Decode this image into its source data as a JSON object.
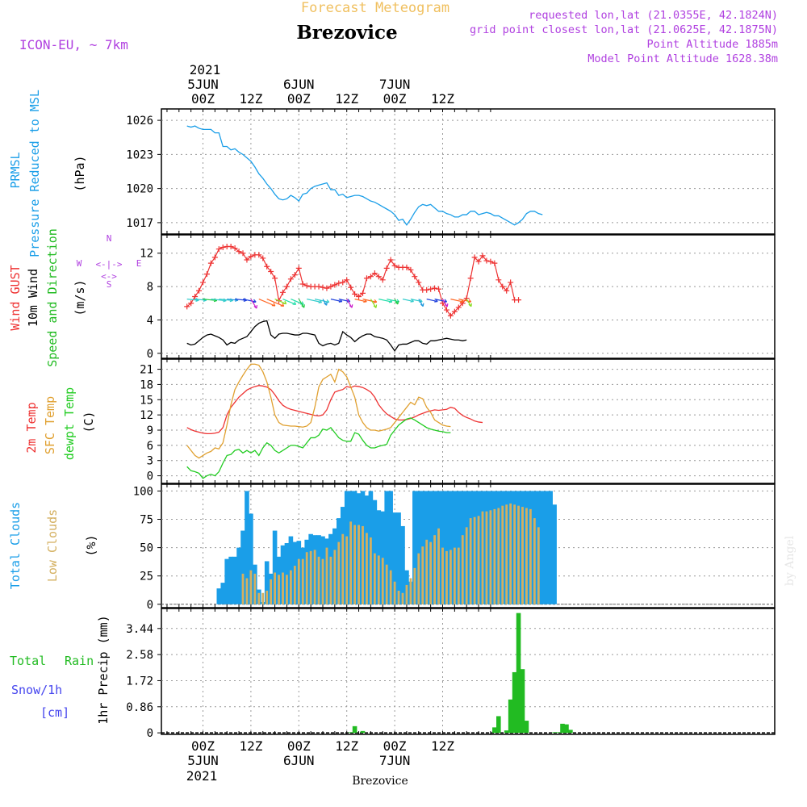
{
  "header": {
    "forecast_title": "Forecast Meteogram",
    "location": "Brezovice",
    "model": "ICON-EU, ~ 7km",
    "requested": "requested lon,lat (21.0355E, 42.1824N)",
    "grid_point": "grid point closest lon,lat (21.0625E, 42.1875N)",
    "point_altitude": "Point Altitude 1885m",
    "model_altitude": "Model Point Altitude 1628.38m"
  },
  "footer": {
    "location": "Brezovice",
    "watermark": "by Angel"
  },
  "colors": {
    "pressure": "#1a9ee8",
    "gust": "#ee3333",
    "wind": "#000000",
    "direction": "#22bb22",
    "t2m": "#ee3333",
    "sfc": "#e0a030",
    "dewpt": "#22cc22",
    "total_clouds": "#1a9ee8",
    "low_clouds": "#d4b060",
    "rain": "#22bb22",
    "snow": "#4444ee",
    "header_purple": "#b040e0",
    "title_orange": "#f0c060"
  },
  "chart_data": [
    {
      "type": "line",
      "panel": "pressure",
      "ylabel": [
        "PRMSL",
        "Pressure Reduced to MSL",
        "(hPa)"
      ],
      "ylim": [
        1016,
        1027
      ],
      "yticks": [
        "1017",
        "1020",
        "1023",
        "1026"
      ],
      "x_start_hour": -4,
      "series": [
        {
          "name": "PRMSL",
          "color": "#1a9ee8",
          "values": [
            1025.5,
            1025.4,
            1025.5,
            1025.3,
            1025.2,
            1025.2,
            1025.2,
            1024.9,
            1024.9,
            1023.7,
            1023.7,
            1023.4,
            1023.5,
            1023.2,
            1023.0,
            1022.7,
            1022.4,
            1021.9,
            1021.3,
            1020.9,
            1020.4,
            1020.0,
            1019.5,
            1019.1,
            1019.0,
            1019.1,
            1019.4,
            1019.2,
            1018.9,
            1019.5,
            1019.6,
            1020.0,
            1020.2,
            1020.3,
            1020.4,
            1020.5,
            1019.9,
            1019.9,
            1019.4,
            1019.5,
            1019.2,
            1019.3,
            1019.4,
            1019.4,
            1019.3,
            1019.1,
            1018.9,
            1018.8,
            1018.6,
            1018.4,
            1018.2,
            1018.0,
            1017.7,
            1017.2,
            1017.3,
            1016.8,
            1017.3,
            1017.9,
            1018.4,
            1018.6,
            1018.5,
            1018.6,
            1018.3,
            1018.0,
            1018.0,
            1017.8,
            1017.7,
            1017.5,
            1017.5,
            1017.7,
            1017.7,
            1018.0,
            1018.0,
            1017.7,
            1017.8,
            1017.9,
            1017.8,
            1017.6,
            1017.6,
            1017.4,
            1017.2,
            1017.0,
            1016.8,
            1017.0,
            1017.3,
            1017.8,
            1018.0,
            1018.0,
            1017.8,
            1017.7
          ]
        }
      ]
    },
    {
      "type": "line",
      "panel": "wind",
      "ylabel": [
        "Wind GUST",
        "10m Wind",
        "Speed and Direction",
        "(m/s)"
      ],
      "ylim": [
        -0.6,
        14.2
      ],
      "yticks": [
        "0",
        "4",
        "8",
        "12"
      ],
      "x_start_hour": -4,
      "compass": {
        "n": "N",
        "s": "S",
        "e": "E",
        "w": "W"
      },
      "series": [
        {
          "name": "Wind GUST",
          "color": "#ee3333",
          "values": [
            5.6,
            6.0,
            6.8,
            7.5,
            8.5,
            9.5,
            10.8,
            11.5,
            12.5,
            12.7,
            12.8,
            12.8,
            12.6,
            12.2,
            12.0,
            11.2,
            11.6,
            11.8,
            11.8,
            11.4,
            10.4,
            9.8,
            9.0,
            6.3,
            7.3,
            8.0,
            8.9,
            9.4,
            10.2,
            8.3,
            8.1,
            8.0,
            8.0,
            8.0,
            7.9,
            7.8,
            8.0,
            8.2,
            8.4,
            8.5,
            8.8,
            7.9,
            7.1,
            6.8,
            7.2,
            9.0,
            9.2,
            9.6,
            9.2,
            8.8,
            10.2,
            11.2,
            10.5,
            10.3,
            10.3,
            10.3,
            10.0,
            9.2,
            8.5,
            7.6,
            7.6,
            7.7,
            7.8,
            7.7,
            6.0,
            5.2,
            4.5,
            5.0,
            5.5,
            6.0,
            6.6,
            9.0,
            11.5,
            11.0,
            11.7,
            11.1,
            11.0,
            10.8,
            8.8,
            8.0,
            7.5,
            8.5,
            6.4,
            6.4
          ]
        },
        {
          "name": "10m Wind",
          "color": "#000000",
          "values": [
            1.2,
            1.0,
            1.1,
            1.5,
            1.9,
            2.2,
            2.3,
            2.1,
            1.9,
            1.6,
            1.0,
            1.3,
            1.2,
            1.6,
            1.8,
            2.0,
            2.6,
            3.2,
            3.6,
            3.8,
            3.9,
            2.2,
            1.8,
            2.3,
            2.4,
            2.4,
            2.3,
            2.2,
            2.2,
            2.4,
            2.4,
            2.3,
            2.2,
            1.2,
            0.9,
            1.1,
            1.2,
            1.0,
            1.2,
            2.6,
            2.2,
            1.9,
            1.4,
            1.8,
            2.1,
            2.3,
            2.3,
            2.0,
            1.9,
            1.8,
            1.6,
            1.0,
            0.3,
            1.0,
            1.1,
            1.1,
            1.3,
            1.5,
            1.5,
            1.2,
            1.1,
            1.5,
            1.5,
            1.6,
            1.7,
            1.8,
            1.7,
            1.6,
            1.6,
            1.5,
            1.6
          ]
        }
      ],
      "arrows_note": "wind direction arrows coloured by speed"
    },
    {
      "type": "line",
      "panel": "temperature",
      "ylabel": [
        "2m Temp",
        "SFC Temp",
        "dewpt Temp",
        "(C)"
      ],
      "ylim": [
        -1.5,
        23
      ],
      "yticks": [
        "0",
        "3",
        "6",
        "9",
        "12",
        "15",
        "18",
        "21"
      ],
      "x_start_hour": -4,
      "series": [
        {
          "name": "2m Temp",
          "color": "#ee3333",
          "values": [
            9.5,
            9.1,
            8.8,
            8.6,
            8.4,
            8.3,
            8.3,
            8.4,
            8.6,
            9.5,
            12.0,
            13.5,
            14.5,
            15.5,
            16.2,
            16.9,
            17.3,
            17.6,
            17.8,
            17.7,
            17.5,
            17.0,
            16.0,
            14.8,
            13.9,
            13.4,
            13.1,
            12.9,
            12.7,
            12.5,
            12.3,
            12.1,
            11.9,
            11.8,
            12.0,
            13.0,
            15.0,
            16.5,
            16.8,
            17.0,
            17.6,
            17.4,
            17.7,
            17.6,
            17.4,
            17.0,
            16.5,
            15.5,
            14.0,
            13.0,
            12.2,
            11.7,
            11.2,
            11.0,
            11.0,
            11.1,
            11.3,
            11.6,
            12.0,
            12.3,
            12.6,
            12.8,
            13.0,
            12.9,
            13.0,
            13.1,
            13.5,
            13.3,
            12.5,
            11.9,
            11.5,
            11.2,
            10.8,
            10.6,
            10.5
          ]
        },
        {
          "name": "SFC Temp",
          "color": "#e0a030",
          "values": [
            6.0,
            5.0,
            4.0,
            3.5,
            4.0,
            4.5,
            4.8,
            5.5,
            5.3,
            6.5,
            10.0,
            14.0,
            17.0,
            18.5,
            19.8,
            21.0,
            22.0,
            22.0,
            21.8,
            20.5,
            18.5,
            15.5,
            12.0,
            10.5,
            10.0,
            9.9,
            9.8,
            9.8,
            9.7,
            9.6,
            9.8,
            10.5,
            13.5,
            17.5,
            19.0,
            19.5,
            20.0,
            18.5,
            21.0,
            20.5,
            19.5,
            17.5,
            15.5,
            12.0,
            10.5,
            9.5,
            9.0,
            9.0,
            8.8,
            9.0,
            9.2,
            9.5,
            10.5,
            11.5,
            12.5,
            13.5,
            14.5,
            14.0,
            15.5,
            15.2,
            13.5,
            12.5,
            11.0,
            10.5,
            10.0,
            9.8,
            9.7
          ]
        },
        {
          "name": "dewpt Temp",
          "color": "#22cc22",
          "values": [
            1.8,
            1.0,
            0.8,
            0.5,
            -0.5,
            0.0,
            0.3,
            0.0,
            0.8,
            2.5,
            4.0,
            4.2,
            5.0,
            5.2,
            4.5,
            5.0,
            4.5,
            5.0,
            4.0,
            5.5,
            6.5,
            6.0,
            5.0,
            4.5,
            5.0,
            5.5,
            6.0,
            6.0,
            5.8,
            5.5,
            6.5,
            7.5,
            7.5,
            8.0,
            9.2,
            9.0,
            9.5,
            8.5,
            7.5,
            7.0,
            6.8,
            6.8,
            8.5,
            8.2,
            7.0,
            6.0,
            5.5,
            5.5,
            5.8,
            6.0,
            6.2,
            8.0,
            9.0,
            10.0,
            10.6,
            11.2,
            11.4,
            11.0,
            10.5,
            10.0,
            9.5,
            9.2,
            9.0,
            8.8,
            8.7,
            8.5,
            8.5
          ]
        }
      ]
    },
    {
      "type": "bar",
      "panel": "clouds",
      "ylabel": [
        "Total Clouds",
        "Low Clouds",
        "(%)"
      ],
      "ylim": [
        -3,
        106
      ],
      "yticks": [
        "0",
        "25",
        "50",
        "75",
        "100"
      ],
      "x_start_hour": -4,
      "series": [
        {
          "name": "Total Clouds",
          "color": "#1a9ee8",
          "values": [
            0,
            0,
            0,
            0,
            0,
            0,
            0,
            0,
            14,
            19,
            40,
            42,
            42,
            50,
            65,
            100,
            80,
            35,
            13,
            2,
            38,
            27,
            65,
            42,
            52,
            54,
            60,
            55,
            56,
            50,
            57,
            62,
            61,
            61,
            60,
            58,
            62,
            67,
            76,
            86,
            100,
            100,
            100,
            98,
            100,
            96,
            100,
            92,
            83,
            82,
            100,
            100,
            81,
            81,
            69,
            30,
            20,
            100,
            100,
            100,
            100,
            100,
            100,
            100,
            100,
            100,
            100,
            100,
            100,
            100,
            100,
            100,
            100,
            100,
            100,
            100,
            100,
            100,
            100,
            100,
            100,
            100,
            100,
            100,
            100,
            100,
            100,
            100,
            100,
            100,
            100,
            100,
            88
          ]
        },
        {
          "name": "Low Clouds",
          "color": "#d4b060",
          "values": [
            0,
            0,
            0,
            0,
            0,
            0,
            0,
            0,
            0,
            0,
            0,
            0,
            0,
            0,
            27,
            23,
            30,
            27,
            10,
            10,
            12,
            22,
            28,
            26,
            28,
            26,
            30,
            34,
            40,
            40,
            46,
            47,
            48,
            42,
            40,
            50,
            42,
            48,
            55,
            62,
            60,
            73,
            70,
            70,
            69,
            63,
            59,
            45,
            43,
            41,
            35,
            30,
            20,
            12,
            10,
            17,
            23,
            32,
            45,
            51,
            57,
            55,
            61,
            67,
            50,
            47,
            48,
            50,
            50,
            61,
            68,
            76,
            77,
            78,
            82,
            82,
            83,
            84,
            85,
            87,
            88,
            89,
            88,
            87,
            86,
            85,
            84,
            76,
            68
          ]
        }
      ]
    },
    {
      "type": "bar",
      "panel": "precipitation",
      "ylabel": [
        "1hr Precip (mm)"
      ],
      "legend": {
        "total": "Total",
        "rain": "Rain",
        "snow": "Snow/1h",
        "unit": "[cm]"
      },
      "ylim": [
        -0.05,
        4.1
      ],
      "yticks": [
        "0",
        "0.86",
        "1.72",
        "2.58",
        "3.44"
      ],
      "x_start_hour": -4,
      "series": [
        {
          "name": "Total Rain",
          "color": "#22bb22",
          "values": [
            0,
            0,
            0,
            0,
            0,
            0,
            0,
            0,
            0,
            0,
            0,
            0,
            0,
            0,
            0,
            0,
            0,
            0,
            0,
            0,
            0,
            0,
            0,
            0,
            0,
            0,
            0,
            0,
            0,
            0,
            0,
            0,
            0,
            0,
            0,
            0,
            0,
            0,
            0,
            0,
            0,
            0.02,
            0.22,
            0,
            0.06,
            0,
            0,
            0,
            0,
            0,
            0,
            0,
            0,
            0,
            0,
            0,
            0,
            0,
            0,
            0,
            0,
            0,
            0,
            0,
            0,
            0,
            0,
            0,
            0,
            0,
            0,
            0,
            0,
            0,
            0,
            0,
            0,
            0.18,
            0.55,
            0,
            0.08,
            1.1,
            2.0,
            3.95,
            2.1,
            0.4,
            0,
            0,
            0,
            0,
            0,
            0,
            0.02,
            0.02,
            0.3,
            0.28,
            0.1
          ]
        }
      ]
    }
  ],
  "xaxis": {
    "top_year": "2021",
    "bottom_year": "2021",
    "day_labels": [
      {
        "hour": 0,
        "time": "00Z",
        "date": "5JUN"
      },
      {
        "hour": 12,
        "time": "12Z",
        "date": ""
      },
      {
        "hour": 24,
        "time": "00Z",
        "date": "6JUN"
      },
      {
        "hour": 36,
        "time": "12Z",
        "date": ""
      },
      {
        "hour": 48,
        "time": "00Z",
        "date": "7JUN"
      },
      {
        "hour": 60,
        "time": "12Z",
        "date": ""
      }
    ]
  }
}
